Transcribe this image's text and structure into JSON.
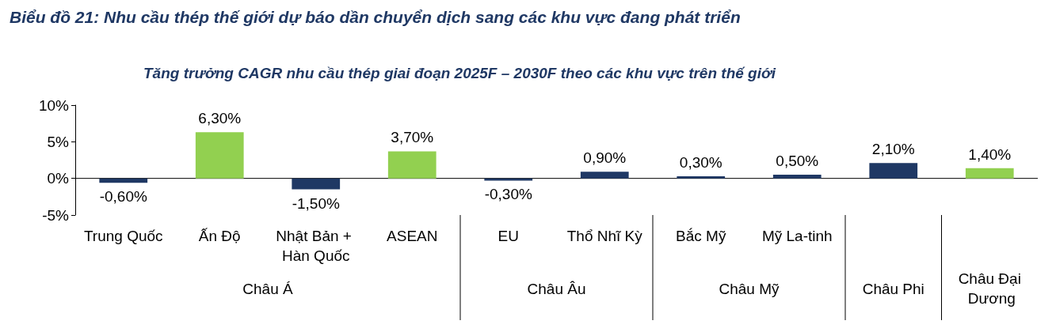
{
  "chart_data": {
    "type": "bar",
    "title": "Biểu đồ 21: Nhu cầu thép thế giới dự báo dần chuyển dịch sang các khu vực đang phát triển",
    "subtitle": "Tăng trưởng CAGR nhu cầu thép giai đoạn 2025F – 2030F theo các khu vực trên thế giới",
    "categories": [
      "Trung Quốc",
      "Ấn Độ",
      "Nhật Bản + Hàn Quốc",
      "ASEAN",
      "EU",
      "Thổ Nhĩ Kỳ",
      "Bắc Mỹ",
      "Mỹ La-tinh",
      null,
      null
    ],
    "values": [
      -0.6,
      6.3,
      -1.5,
      3.7,
      -0.3,
      0.9,
      0.3,
      0.5,
      2.1,
      1.4
    ],
    "colors": [
      "#1f3864",
      "#92d050",
      "#1f3864",
      "#92d050",
      "#1f3864",
      "#1f3864",
      "#1f3864",
      "#1f3864",
      "#1f3864",
      "#92d050"
    ],
    "value_labels": [
      "-0,60%",
      "6,30%",
      "-1,50%",
      "3,70%",
      "-0,30%",
      "0,90%",
      "0,30%",
      "0,50%",
      "2,10%",
      "1,40%"
    ],
    "ylim": [
      -5,
      10
    ],
    "yticks": [
      {
        "value": 10,
        "label": "10%"
      },
      {
        "value": 5,
        "label": "5%"
      },
      {
        "value": 0,
        "label": "0%"
      },
      {
        "value": -5,
        "label": "-5%"
      }
    ],
    "annotations": [
      "Châu Á",
      "Châu Âu",
      "Châu Mỹ",
      "Châu Phi",
      "Châu Đại Dương"
    ]
  }
}
